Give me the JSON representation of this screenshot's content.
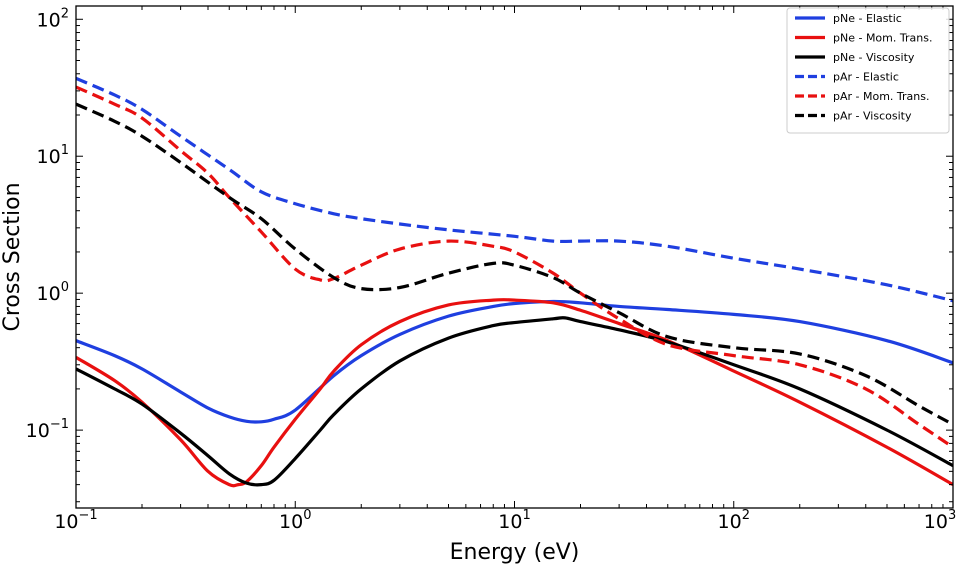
{
  "chart_data": {
    "type": "line",
    "title": "",
    "xlabel": "Energy (eV)",
    "ylabel": "Cross Section",
    "xscale": "log",
    "yscale": "log",
    "xlim": [
      0.1,
      1000
    ],
    "ylim": [
      0.027,
      125
    ],
    "x_ticks": [
      {
        "value": 0.1,
        "base": "10",
        "exp": "−1"
      },
      {
        "value": 1,
        "base": "10",
        "exp": "0"
      },
      {
        "value": 10,
        "base": "10",
        "exp": "1"
      },
      {
        "value": 100,
        "base": "10",
        "exp": "2"
      },
      {
        "value": 1000,
        "base": "10",
        "exp": "3"
      }
    ],
    "y_ticks": [
      {
        "value": 0.1,
        "base": "10",
        "exp": "−1"
      },
      {
        "value": 1,
        "base": "10",
        "exp": "0"
      },
      {
        "value": 10,
        "base": "10",
        "exp": "1"
      },
      {
        "value": 100,
        "base": "10",
        "exp": "2"
      }
    ],
    "legend_position": "top-right",
    "series": [
      {
        "name": "pNe - Elastic",
        "color": "#1f3fe0",
        "dash": "solid",
        "x": [
          0.1,
          0.15,
          0.2,
          0.3,
          0.4,
          0.5,
          0.6,
          0.7,
          0.8,
          1.0,
          1.5,
          2,
          3,
          5,
          8,
          10,
          15,
          20,
          30,
          50,
          100,
          200,
          500,
          1000
        ],
        "y": [
          0.45,
          0.35,
          0.28,
          0.19,
          0.145,
          0.125,
          0.116,
          0.115,
          0.12,
          0.14,
          0.25,
          0.35,
          0.5,
          0.68,
          0.8,
          0.84,
          0.87,
          0.85,
          0.8,
          0.76,
          0.7,
          0.62,
          0.45,
          0.31
        ]
      },
      {
        "name": "pNe - Mom. Trans.",
        "color": "#e81010",
        "dash": "solid",
        "x": [
          0.1,
          0.15,
          0.2,
          0.3,
          0.4,
          0.5,
          0.55,
          0.6,
          0.7,
          0.8,
          1.0,
          1.3,
          1.5,
          2,
          3,
          5,
          8,
          10,
          15,
          20,
          30,
          50,
          100,
          200,
          500,
          1000
        ],
        "y": [
          0.34,
          0.23,
          0.16,
          0.085,
          0.05,
          0.04,
          0.04,
          0.042,
          0.055,
          0.075,
          0.12,
          0.2,
          0.27,
          0.42,
          0.62,
          0.82,
          0.89,
          0.89,
          0.85,
          0.75,
          0.6,
          0.45,
          0.27,
          0.16,
          0.075,
          0.04
        ]
      },
      {
        "name": "pNe - Viscosity",
        "color": "#000000",
        "dash": "solid",
        "x": [
          0.1,
          0.15,
          0.2,
          0.3,
          0.4,
          0.5,
          0.6,
          0.7,
          0.8,
          1.0,
          1.3,
          1.5,
          2,
          3,
          5,
          8,
          10,
          15,
          17,
          20,
          30,
          50,
          100,
          200,
          500,
          1000
        ],
        "y": [
          0.28,
          0.2,
          0.155,
          0.095,
          0.065,
          0.048,
          0.041,
          0.04,
          0.043,
          0.062,
          0.1,
          0.13,
          0.2,
          0.32,
          0.47,
          0.58,
          0.61,
          0.65,
          0.66,
          0.62,
          0.54,
          0.44,
          0.3,
          0.2,
          0.1,
          0.055
        ]
      },
      {
        "name": "pAr - Elastic",
        "color": "#1f3fe0",
        "dash": "dashed",
        "x": [
          0.1,
          0.15,
          0.2,
          0.3,
          0.5,
          0.7,
          1.0,
          1.5,
          2,
          3,
          5,
          10,
          15,
          20,
          30,
          50,
          100,
          200,
          500,
          1000
        ],
        "y": [
          37,
          28,
          22,
          14,
          8,
          5.5,
          4.5,
          3.8,
          3.5,
          3.2,
          2.9,
          2.6,
          2.4,
          2.4,
          2.4,
          2.2,
          1.8,
          1.5,
          1.15,
          0.88
        ]
      },
      {
        "name": "pAr - Mom. Trans.",
        "color": "#e81010",
        "dash": "dashed",
        "x": [
          0.1,
          0.15,
          0.2,
          0.3,
          0.4,
          0.5,
          0.7,
          1.0,
          1.3,
          1.5,
          2,
          3,
          5,
          8,
          10,
          15,
          20,
          30,
          50,
          100,
          200,
          400,
          700,
          1000
        ],
        "y": [
          32,
          24,
          19,
          11,
          7.5,
          5,
          2.8,
          1.5,
          1.25,
          1.28,
          1.6,
          2.1,
          2.4,
          2.2,
          2.0,
          1.4,
          1.0,
          0.65,
          0.42,
          0.35,
          0.3,
          0.2,
          0.11,
          0.075
        ]
      },
      {
        "name": "pAr - Viscosity",
        "color": "#000000",
        "dash": "dashed",
        "x": [
          0.1,
          0.15,
          0.2,
          0.3,
          0.5,
          0.7,
          1.0,
          1.5,
          2,
          3,
          5,
          8,
          10,
          15,
          20,
          30,
          50,
          100,
          200,
          400,
          700,
          1000
        ],
        "y": [
          24,
          18,
          14,
          9,
          5,
          3.5,
          2.1,
          1.3,
          1.08,
          1.1,
          1.4,
          1.65,
          1.6,
          1.3,
          1.0,
          0.72,
          0.48,
          0.4,
          0.36,
          0.25,
          0.15,
          0.11
        ]
      }
    ]
  }
}
